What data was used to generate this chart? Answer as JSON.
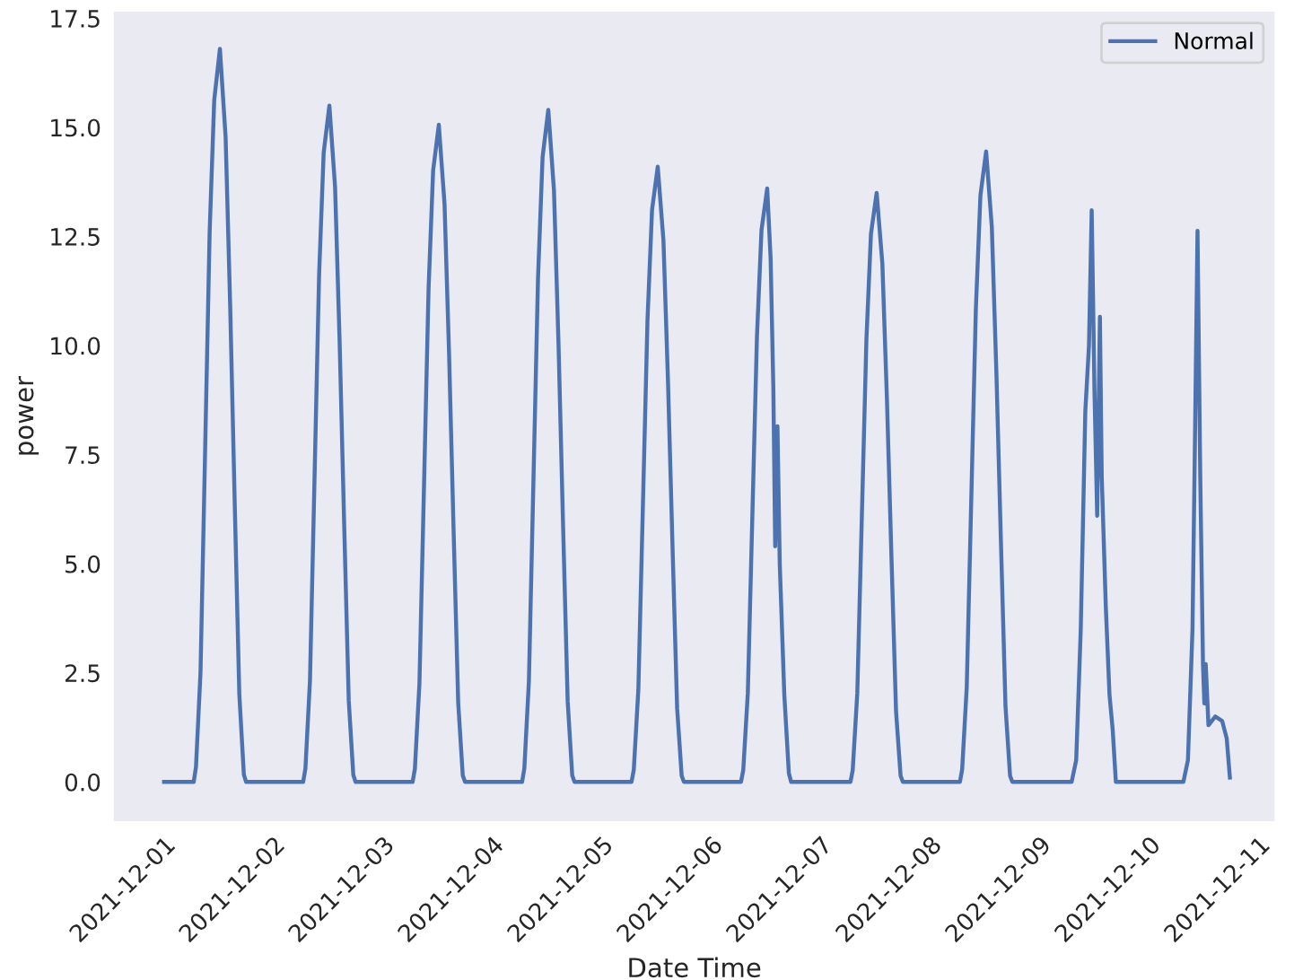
{
  "chart_data": {
    "type": "line",
    "xlabel": "Date Time",
    "ylabel": "power",
    "xlim": [
      "2021-11-30T13:00",
      "2021-12-11T03:30"
    ],
    "ylim": [
      -0.9,
      17.65
    ],
    "xticks": [
      "2021-12-01",
      "2021-12-02",
      "2021-12-03",
      "2021-12-04",
      "2021-12-05",
      "2021-12-06",
      "2021-12-07",
      "2021-12-08",
      "2021-12-09",
      "2021-12-10",
      "2021-12-11"
    ],
    "yticks": [
      {
        "value": 0,
        "label": "0.0"
      },
      {
        "value": 2.5,
        "label": "2.5"
      },
      {
        "value": 5,
        "label": "5.0"
      },
      {
        "value": 7.5,
        "label": "7.5"
      },
      {
        "value": 10,
        "label": "10.0"
      },
      {
        "value": 12.5,
        "label": "12.5"
      },
      {
        "value": 15,
        "label": "15.0"
      },
      {
        "value": 17.5,
        "label": "17.5"
      }
    ],
    "grid": false,
    "legend": "top right",
    "marker": "none",
    "line_style": "solid",
    "series": [
      {
        "name": "Normal",
        "color": "#4c72b0",
        "x": [
          "2021-12-01T00:00",
          "2021-12-01T06:30",
          "2021-12-01T07:00",
          "2021-12-01T08:00",
          "2021-12-01T09:00",
          "2021-12-01T10:00",
          "2021-12-01T11:00",
          "2021-12-01T12:15",
          "2021-12-01T13:30",
          "2021-12-01T14:30",
          "2021-12-01T15:30",
          "2021-12-01T16:30",
          "2021-12-01T17:30",
          "2021-12-01T18:00",
          "2021-12-02T06:30",
          "2021-12-02T07:00",
          "2021-12-02T08:00",
          "2021-12-02T09:00",
          "2021-12-02T10:00",
          "2021-12-02T11:00",
          "2021-12-02T12:15",
          "2021-12-02T13:30",
          "2021-12-02T14:30",
          "2021-12-02T15:30",
          "2021-12-02T16:30",
          "2021-12-02T17:30",
          "2021-12-02T18:00",
          "2021-12-03T06:30",
          "2021-12-03T07:00",
          "2021-12-03T08:00",
          "2021-12-03T09:00",
          "2021-12-03T10:00",
          "2021-12-03T11:00",
          "2021-12-03T12:15",
          "2021-12-03T13:30",
          "2021-12-03T14:30",
          "2021-12-03T15:30",
          "2021-12-03T16:30",
          "2021-12-03T17:30",
          "2021-12-03T18:00",
          "2021-12-04T06:30",
          "2021-12-04T07:00",
          "2021-12-04T08:00",
          "2021-12-04T09:00",
          "2021-12-04T10:00",
          "2021-12-04T11:00",
          "2021-12-04T12:15",
          "2021-12-04T13:30",
          "2021-12-04T14:30",
          "2021-12-04T15:30",
          "2021-12-04T16:30",
          "2021-12-04T17:30",
          "2021-12-04T18:00",
          "2021-12-05T06:30",
          "2021-12-05T07:00",
          "2021-12-05T08:00",
          "2021-12-05T09:00",
          "2021-12-05T10:00",
          "2021-12-05T11:00",
          "2021-12-05T12:15",
          "2021-12-05T13:30",
          "2021-12-05T14:30",
          "2021-12-05T15:30",
          "2021-12-05T16:30",
          "2021-12-05T17:30",
          "2021-12-05T18:00",
          "2021-12-06T06:30",
          "2021-12-06T07:00",
          "2021-12-06T08:00",
          "2021-12-06T09:00",
          "2021-12-06T10:00",
          "2021-12-06T11:00",
          "2021-12-06T12:15",
          "2021-12-06T13:00",
          "2021-12-06T13:36",
          "2021-12-06T14:00",
          "2021-12-06T14:30",
          "2021-12-06T15:00",
          "2021-12-06T16:00",
          "2021-12-06T17:00",
          "2021-12-06T17:30",
          "2021-12-07T06:30",
          "2021-12-07T07:00",
          "2021-12-07T08:00",
          "2021-12-07T09:00",
          "2021-12-07T10:00",
          "2021-12-07T11:00",
          "2021-12-07T12:15",
          "2021-12-07T13:30",
          "2021-12-07T14:30",
          "2021-12-07T15:30",
          "2021-12-07T16:30",
          "2021-12-07T17:30",
          "2021-12-07T18:00",
          "2021-12-08T06:30",
          "2021-12-08T07:00",
          "2021-12-08T08:00",
          "2021-12-08T09:00",
          "2021-12-08T10:00",
          "2021-12-08T11:00",
          "2021-12-08T12:15",
          "2021-12-08T13:30",
          "2021-12-08T14:30",
          "2021-12-08T15:30",
          "2021-12-08T16:30",
          "2021-12-08T17:30",
          "2021-12-08T18:00",
          "2021-12-09T07:00",
          "2021-12-09T08:00",
          "2021-12-09T09:00",
          "2021-12-09T10:00",
          "2021-12-09T10:48",
          "2021-12-09T11:24",
          "2021-12-09T12:00",
          "2021-12-09T12:36",
          "2021-12-09T13:12",
          "2021-12-09T13:36",
          "2021-12-09T14:30",
          "2021-12-09T15:18",
          "2021-12-09T16:00",
          "2021-12-09T16:42",
          "2021-12-10T07:30",
          "2021-12-10T08:30",
          "2021-12-10T09:30",
          "2021-12-10T10:00",
          "2021-12-10T10:36",
          "2021-12-10T11:12",
          "2021-12-10T11:48",
          "2021-12-10T12:06",
          "2021-12-10T12:24",
          "2021-12-10T13:00",
          "2021-12-10T14:30",
          "2021-12-10T16:00",
          "2021-12-10T17:00",
          "2021-12-10T17:42"
        ],
        "values": [
          0,
          0,
          0.34,
          2.52,
          7.56,
          12.6,
          15.62,
          16.8,
          14.78,
          10.92,
          6.38,
          2.02,
          0.17,
          0,
          0,
          0.31,
          2.33,
          6.98,
          11.63,
          14.42,
          15.5,
          13.64,
          10.08,
          5.89,
          1.86,
          0.16,
          0,
          0,
          0.3,
          2.26,
          6.78,
          11.3,
          14.01,
          15.06,
          13.25,
          9.79,
          5.72,
          1.81,
          0.15,
          0,
          0,
          0.31,
          2.31,
          6.93,
          11.55,
          14.32,
          15.4,
          13.55,
          10.01,
          5.85,
          1.85,
          0.15,
          0,
          0,
          0.28,
          2.12,
          6.35,
          10.58,
          13.11,
          14.1,
          12.41,
          9.17,
          5.36,
          1.69,
          0.14,
          0,
          0,
          0.27,
          2.04,
          6.12,
          10.2,
          12.65,
          13.6,
          12.0,
          9.0,
          5.4,
          8.15,
          5.0,
          2.0,
          0.2,
          0,
          0,
          0.27,
          2.03,
          6.08,
          10.13,
          12.56,
          13.5,
          11.88,
          8.78,
          5.13,
          1.62,
          0.14,
          0,
          0,
          0.29,
          2.17,
          6.5,
          10.84,
          13.44,
          14.45,
          12.72,
          9.39,
          5.49,
          1.73,
          0.14,
          0,
          0,
          0.5,
          3.5,
          8.5,
          10.0,
          13.1,
          9.0,
          6.1,
          10.66,
          7.0,
          4.0,
          2.0,
          1.2,
          0,
          0,
          0.5,
          3.5,
          7.5,
          12.63,
          7.0,
          2.7,
          1.8,
          2.7,
          1.3,
          1.5,
          1.4,
          1.0,
          0.1
        ]
      }
    ]
  }
}
